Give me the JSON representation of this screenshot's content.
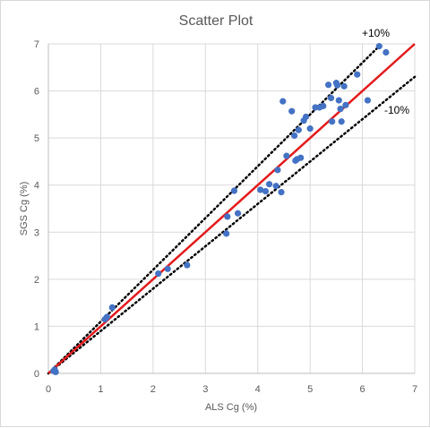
{
  "chart_data": {
    "type": "scatter",
    "title": "Scatter Plot",
    "xlabel": "ALS Cg (%)",
    "ylabel": "SGS Cg (%)",
    "xlim": [
      0,
      7
    ],
    "ylim": [
      0,
      7
    ],
    "xticks": [
      0,
      1,
      2,
      3,
      4,
      5,
      6,
      7
    ],
    "yticks": [
      0,
      1,
      2,
      3,
      4,
      5,
      6,
      7
    ],
    "grid": true,
    "legend": "none",
    "colors": {
      "points": "#4472c4",
      "reference": "#e31a1c",
      "band": "#000000",
      "grid": "#d9d9d9"
    },
    "reference_line": {
      "slope": 1.0
    },
    "band_upper": {
      "label": "+10%",
      "slope": 1.1
    },
    "band_lower": {
      "label": "-10%",
      "slope": 0.9
    },
    "points": [
      [
        0.1,
        0.05
      ],
      [
        0.12,
        0.08
      ],
      [
        0.14,
        0.03
      ],
      [
        1.08,
        1.15
      ],
      [
        1.12,
        1.2
      ],
      [
        1.22,
        1.4
      ],
      [
        2.1,
        2.12
      ],
      [
        2.28,
        2.22
      ],
      [
        2.65,
        2.3
      ],
      [
        3.4,
        2.97
      ],
      [
        3.42,
        3.33
      ],
      [
        3.55,
        3.88
      ],
      [
        3.62,
        3.4
      ],
      [
        4.05,
        3.9
      ],
      [
        4.15,
        3.87
      ],
      [
        4.22,
        4.02
      ],
      [
        4.35,
        3.98
      ],
      [
        4.38,
        4.32
      ],
      [
        4.45,
        3.85
      ],
      [
        4.48,
        5.78
      ],
      [
        4.55,
        4.62
      ],
      [
        4.65,
        5.57
      ],
      [
        4.7,
        5.05
      ],
      [
        4.72,
        4.52
      ],
      [
        4.75,
        4.55
      ],
      [
        4.78,
        5.17
      ],
      [
        4.82,
        4.58
      ],
      [
        4.88,
        5.37
      ],
      [
        4.92,
        5.45
      ],
      [
        5.0,
        5.2
      ],
      [
        5.1,
        5.65
      ],
      [
        5.18,
        5.65
      ],
      [
        5.25,
        5.68
      ],
      [
        5.35,
        6.13
      ],
      [
        5.4,
        5.85
      ],
      [
        5.42,
        5.35
      ],
      [
        5.5,
        6.17
      ],
      [
        5.52,
        6.12
      ],
      [
        5.55,
        5.8
      ],
      [
        5.58,
        5.62
      ],
      [
        5.6,
        5.35
      ],
      [
        5.65,
        6.1
      ],
      [
        5.68,
        5.7
      ],
      [
        5.9,
        6.35
      ],
      [
        6.1,
        5.8
      ],
      [
        6.32,
        6.95
      ],
      [
        6.45,
        6.82
      ]
    ]
  }
}
